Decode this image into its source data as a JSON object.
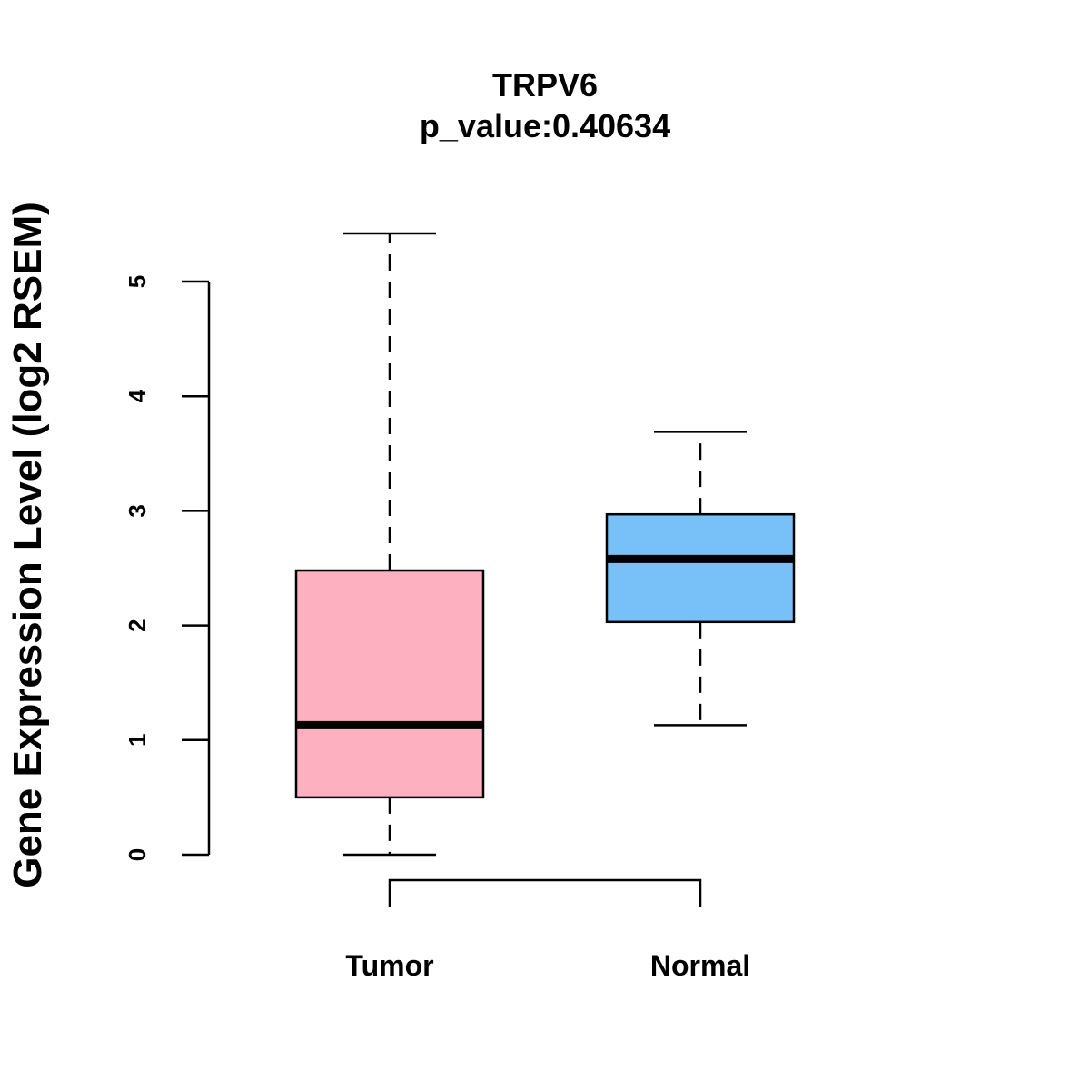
{
  "chart_data": {
    "type": "boxplot",
    "title": "TRPV6",
    "subtitle": "p_value:0.40634",
    "ylabel": "Gene Expression Level (log2 RSEM)",
    "xlabel": "",
    "ylim": [
      0,
      5
    ],
    "yticks": [
      0,
      1,
      2,
      3,
      4,
      5
    ],
    "categories": [
      "Tumor",
      "Normal"
    ],
    "series": [
      {
        "name": "Tumor",
        "min": 0.0,
        "q1": 0.5,
        "median": 1.13,
        "q3": 2.48,
        "max": 5.42,
        "color": "#FDB0C0"
      },
      {
        "name": "Normal",
        "min": 1.13,
        "q1": 2.03,
        "median": 2.58,
        "q3": 2.97,
        "max": 3.69,
        "color": "#78C0F8"
      }
    ],
    "comparison_bracket": [
      "Tumor",
      "Normal"
    ],
    "grid": false
  }
}
